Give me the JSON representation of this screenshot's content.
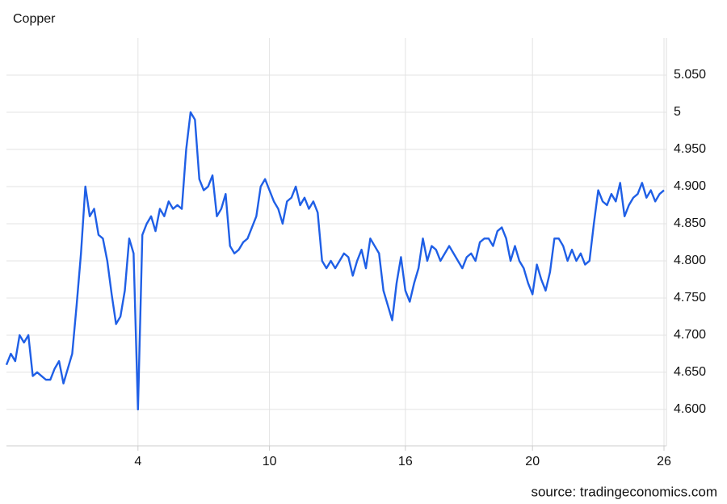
{
  "chart_data": {
    "type": "line",
    "title": "Copper",
    "source": "source: tradingeconomics.com",
    "categories": [
      null,
      null,
      null,
      null,
      null,
      null,
      null,
      null,
      null,
      null,
      null,
      null,
      null,
      null,
      null,
      null,
      null,
      null,
      null,
      null,
      null,
      null,
      null,
      null,
      null,
      null,
      null,
      null,
      null,
      null,
      "4",
      null,
      null,
      null,
      null,
      null,
      null,
      null,
      null,
      null,
      null,
      null,
      null,
      null,
      null,
      null,
      null,
      null,
      null,
      null,
      null,
      null,
      null,
      null,
      null,
      null,
      null,
      null,
      null,
      null,
      "10",
      null,
      null,
      null,
      null,
      null,
      null,
      null,
      null,
      null,
      null,
      null,
      null,
      null,
      null,
      null,
      null,
      null,
      null,
      null,
      null,
      null,
      null,
      null,
      null,
      null,
      null,
      null,
      null,
      null,
      null,
      "16",
      null,
      null,
      null,
      null,
      null,
      null,
      null,
      null,
      null,
      null,
      null,
      null,
      null,
      null,
      null,
      null,
      null,
      null,
      null,
      null,
      null,
      null,
      null,
      null,
      null,
      null,
      null,
      null,
      "20",
      null,
      null,
      null,
      null,
      null,
      null,
      null,
      null,
      null,
      null,
      null,
      null,
      null,
      null,
      null,
      null,
      null,
      null,
      null,
      null,
      null,
      null,
      null,
      null,
      null,
      null,
      null,
      null,
      null,
      "26"
    ],
    "values": [
      4.66,
      4.675,
      4.665,
      4.7,
      4.69,
      4.7,
      4.645,
      4.65,
      4.645,
      4.64,
      4.64,
      4.655,
      4.665,
      4.635,
      4.655,
      4.675,
      4.74,
      4.81,
      4.9,
      4.86,
      4.87,
      4.835,
      4.83,
      4.8,
      4.755,
      4.715,
      4.725,
      4.76,
      4.83,
      4.81,
      4.6,
      4.835,
      4.85,
      4.86,
      4.84,
      4.87,
      4.86,
      4.88,
      4.87,
      4.875,
      4.87,
      4.95,
      5.0,
      4.99,
      4.91,
      4.895,
      4.9,
      4.915,
      4.86,
      4.87,
      4.89,
      4.82,
      4.81,
      4.815,
      4.825,
      4.83,
      4.845,
      4.86,
      4.9,
      4.91,
      4.895,
      4.88,
      4.87,
      4.85,
      4.88,
      4.885,
      4.9,
      4.875,
      4.885,
      4.87,
      4.88,
      4.865,
      4.8,
      4.79,
      4.8,
      4.79,
      4.8,
      4.81,
      4.805,
      4.78,
      4.8,
      4.815,
      4.79,
      4.83,
      4.82,
      4.81,
      4.76,
      4.74,
      4.72,
      4.77,
      4.805,
      4.76,
      4.745,
      4.77,
      4.79,
      4.83,
      4.8,
      4.82,
      4.815,
      4.8,
      4.81,
      4.82,
      4.81,
      4.8,
      4.79,
      4.805,
      4.81,
      4.8,
      4.825,
      4.83,
      4.83,
      4.82,
      4.84,
      4.845,
      4.83,
      4.8,
      4.82,
      4.8,
      4.79,
      4.77,
      4.755,
      4.795,
      4.775,
      4.76,
      4.785,
      4.83,
      4.83,
      4.82,
      4.8,
      4.815,
      4.8,
      4.81,
      4.795,
      4.8,
      4.85,
      4.895,
      4.88,
      4.875,
      4.89,
      4.88,
      4.905,
      4.86,
      4.875,
      4.885,
      4.89,
      4.905,
      4.885,
      4.895,
      4.88,
      4.89,
      4.895
    ],
    "color": "#1f5fe6",
    "ylim": [
      4.551,
      5.1
    ],
    "yticks": [
      {
        "value": 4.6,
        "label": "4.600"
      },
      {
        "value": 4.65,
        "label": "4.650"
      },
      {
        "value": 4.7,
        "label": "4.700"
      },
      {
        "value": 4.75,
        "label": "4.750"
      },
      {
        "value": 4.8,
        "label": "4.800"
      },
      {
        "value": 4.85,
        "label": "4.850"
      },
      {
        "value": 4.9,
        "label": "4.900"
      },
      {
        "value": 4.95,
        "label": "4.950"
      },
      5,
      {
        "value": 5.05,
        "label": "5.050"
      }
    ],
    "grid": true
  }
}
